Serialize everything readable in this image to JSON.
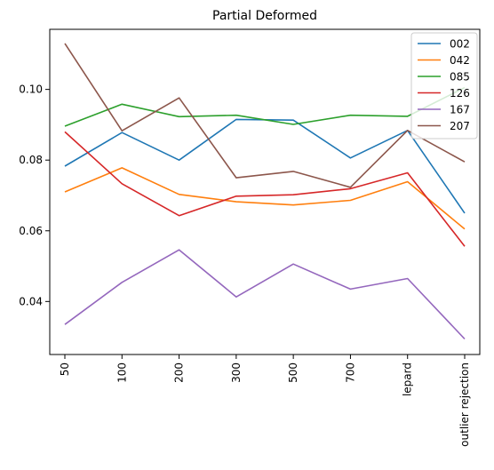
{
  "chart_data": {
    "type": "line",
    "title": "Partial Deformed",
    "xlabel": "",
    "ylabel": "",
    "categories": [
      "50",
      "100",
      "200",
      "300",
      "500",
      "700",
      "lepard",
      "outlier rejection"
    ],
    "ylim": [
      0.025,
      0.117
    ],
    "yticks": [
      0.04,
      0.06,
      0.08,
      0.1
    ],
    "ytick_labels": [
      "0.04",
      "0.06",
      "0.08",
      "0.10"
    ],
    "grid": false,
    "legend_position": "top-right",
    "series": [
      {
        "name": "002",
        "color": "#1f77b4",
        "values": [
          0.0783,
          0.0878,
          0.08,
          0.0915,
          0.0913,
          0.0806,
          0.0884,
          0.065
        ]
      },
      {
        "name": "042",
        "color": "#ff7f0e",
        "values": [
          0.071,
          0.0778,
          0.0703,
          0.0682,
          0.0673,
          0.0686,
          0.0739,
          0.0605
        ]
      },
      {
        "name": "085",
        "color": "#2ca02c",
        "values": [
          0.0896,
          0.0958,
          0.0923,
          0.0927,
          0.0901,
          0.0927,
          0.0924,
          0.1005
        ]
      },
      {
        "name": "126",
        "color": "#d62728",
        "values": [
          0.088,
          0.0733,
          0.0643,
          0.0698,
          0.0702,
          0.0719,
          0.0764,
          0.0556
        ]
      },
      {
        "name": "167",
        "color": "#9467bd",
        "values": [
          0.0335,
          0.0454,
          0.0546,
          0.0413,
          0.0506,
          0.0435,
          0.0465,
          0.0294
        ]
      },
      {
        "name": "207",
        "color": "#8c564b",
        "values": [
          0.113,
          0.0883,
          0.0976,
          0.075,
          0.0768,
          0.0723,
          0.0884,
          0.0795
        ]
      }
    ]
  }
}
